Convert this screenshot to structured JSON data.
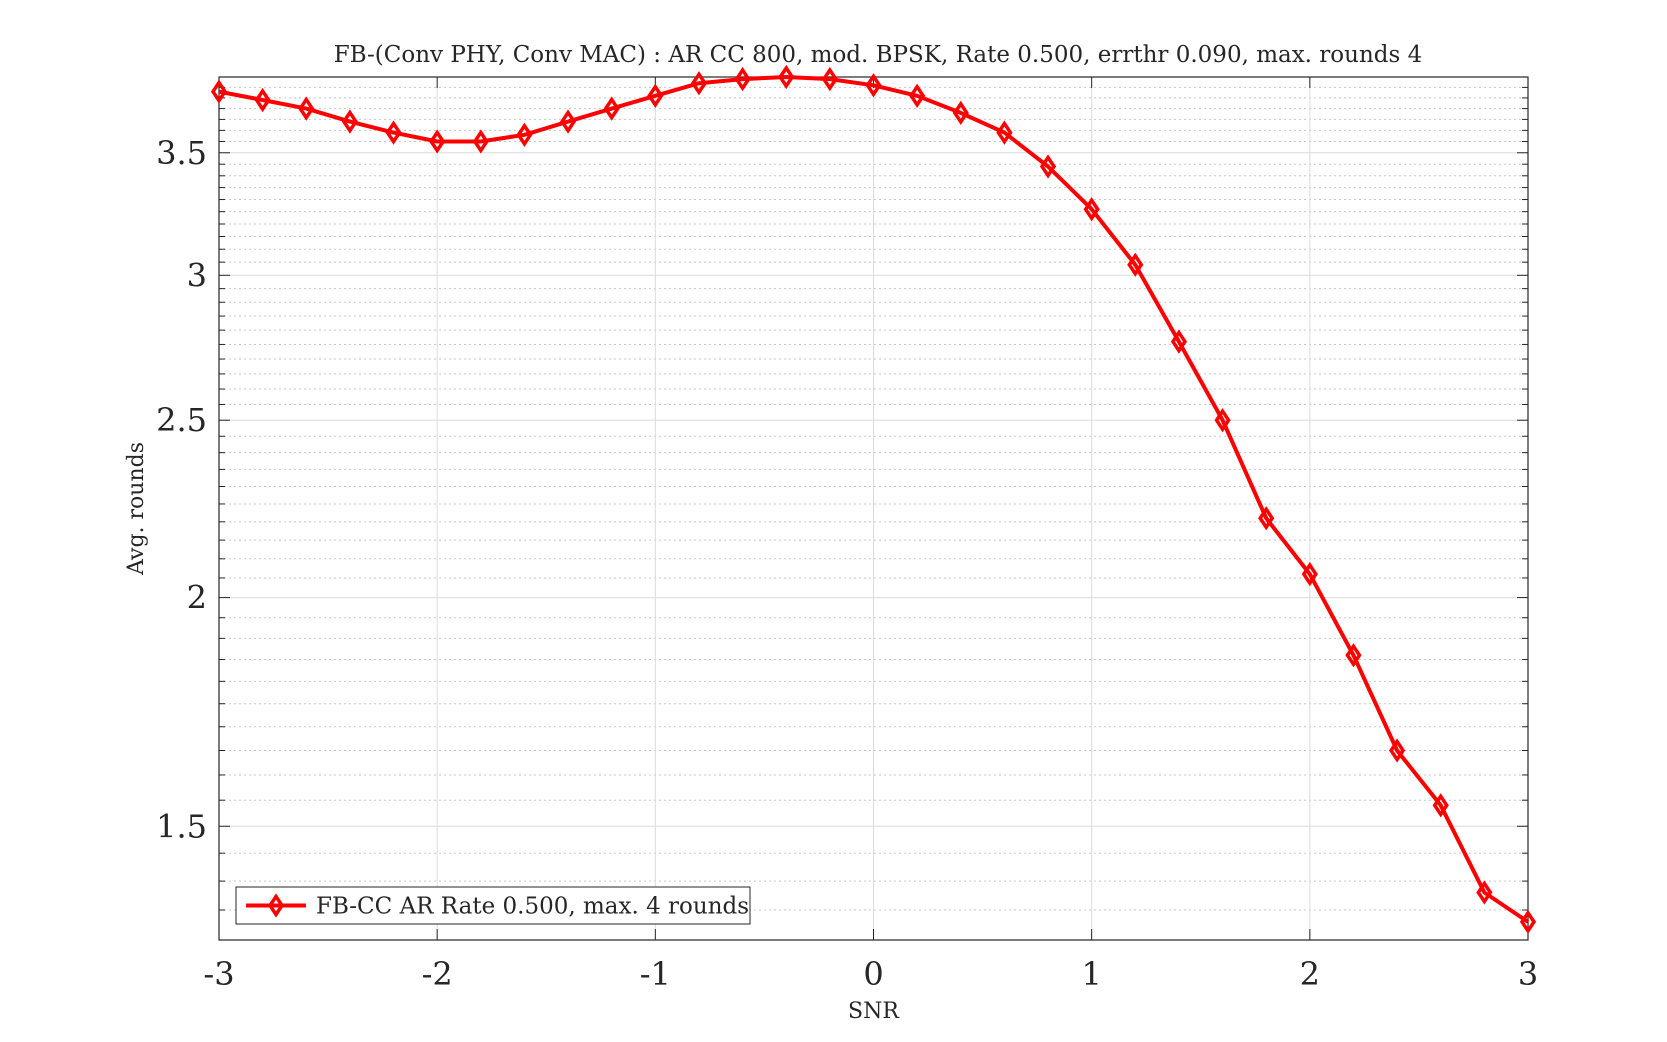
{
  "chart_data": {
    "type": "line",
    "title": "FB-(Conv PHY, Conv MAC) : AR CC 800, mod. BPSK, Rate 0.500, errthr 0.090, max. rounds 4",
    "xlabel": "SNR",
    "ylabel": "Avg. rounds",
    "xlim": [
      -3,
      3
    ],
    "ylim": [
      1.3,
      3.85
    ],
    "yscale": "log",
    "grid": true,
    "minor_grid": true,
    "legend_location": "bottom-left",
    "xticks": [
      -3,
      -2,
      -1,
      0,
      1,
      2,
      3
    ],
    "xtick_labels": [
      "-3",
      "-2",
      "-1",
      "0",
      "1",
      "2",
      "3"
    ],
    "yticks": [
      1.5,
      2,
      2.5,
      3,
      3.5
    ],
    "ytick_labels": [
      "1.5",
      "2",
      "2.5",
      "3",
      "3.5"
    ],
    "series": [
      {
        "name": "FB-CC AR Rate 0.500, max. 4 rounds",
        "color": "#ff0000",
        "marker": "diamond",
        "x": [
          -3.0,
          -2.8,
          -2.6,
          -2.4,
          -2.2,
          -2.0,
          -1.8,
          -1.6,
          -1.4,
          -1.2,
          -1.0,
          -0.8,
          -0.6,
          -0.4,
          -0.2,
          0.0,
          0.2,
          0.4,
          0.6,
          0.8,
          1.0,
          1.2,
          1.4,
          1.6,
          1.8,
          2.0,
          2.2,
          2.4,
          2.6,
          2.8,
          3.0
        ],
        "y": [
          3.78,
          3.74,
          3.7,
          3.64,
          3.59,
          3.55,
          3.55,
          3.58,
          3.64,
          3.7,
          3.76,
          3.82,
          3.84,
          3.85,
          3.84,
          3.81,
          3.76,
          3.68,
          3.59,
          3.44,
          3.26,
          3.04,
          2.76,
          2.5,
          2.21,
          2.06,
          1.86,
          1.65,
          1.54,
          1.38,
          1.33
        ]
      }
    ]
  }
}
